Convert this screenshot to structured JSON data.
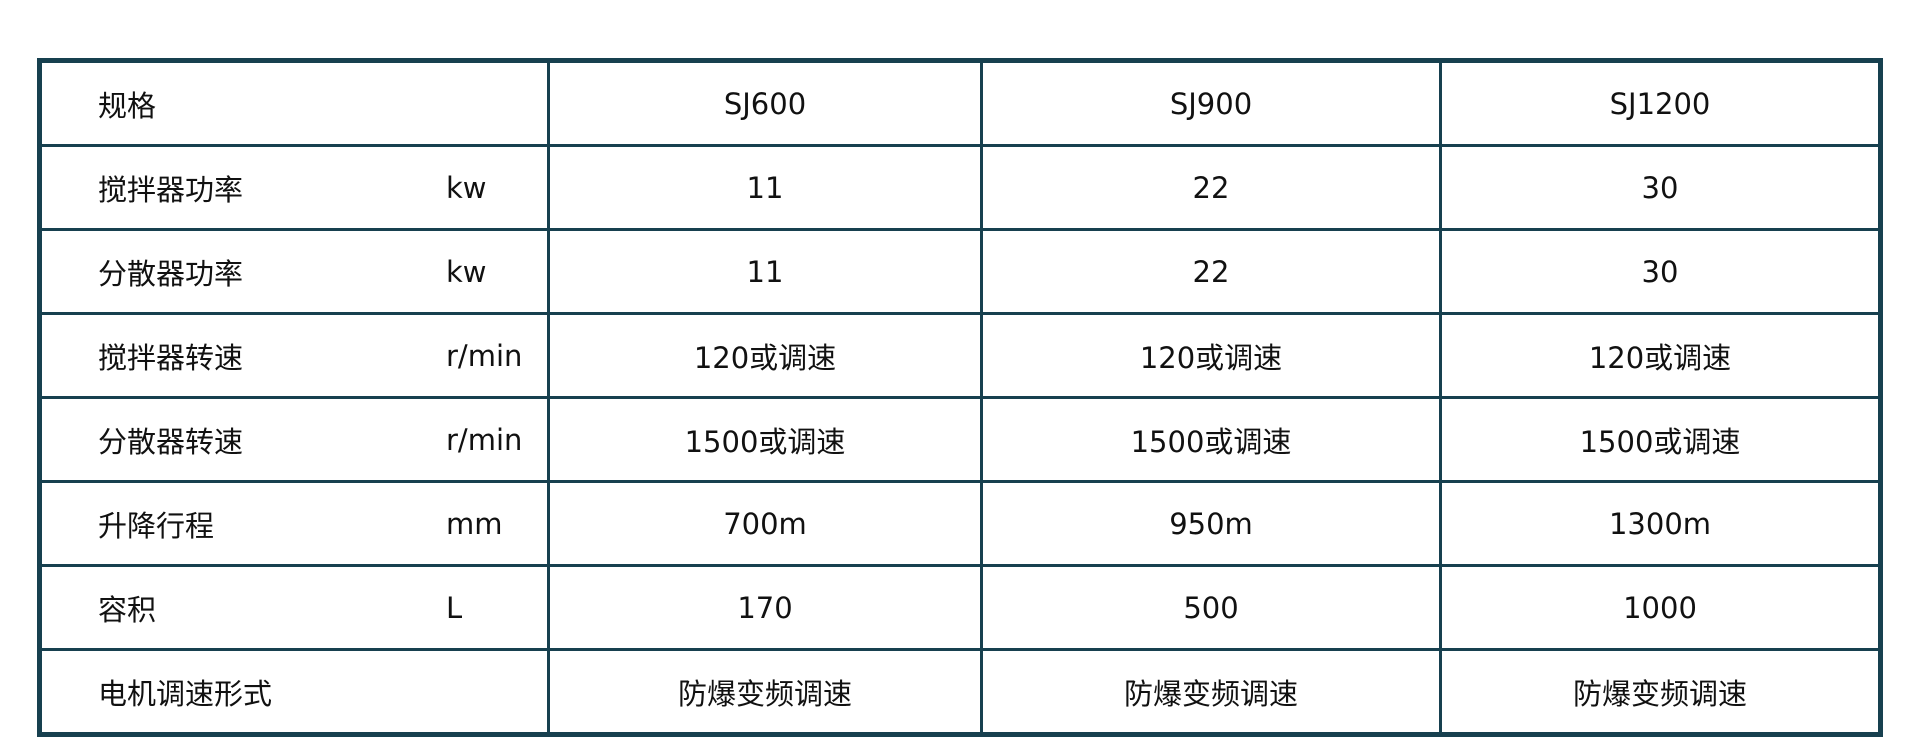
{
  "table": {
    "header": {
      "label": "规格",
      "models": [
        "SJ600",
        "SJ900",
        "SJ1200"
      ]
    },
    "rows": [
      {
        "label": "搅拌器功率",
        "unit": "kw",
        "values": [
          "11",
          "22",
          "30"
        ]
      },
      {
        "label": "分散器功率",
        "unit": "kw",
        "values": [
          "11",
          "22",
          "30"
        ]
      },
      {
        "label": "搅拌器转速",
        "unit": "r/min",
        "values": [
          "120或调速",
          "120或调速",
          "120或调速"
        ]
      },
      {
        "label": "分散器转速",
        "unit": "r/min",
        "values": [
          "1500或调速",
          "1500或调速",
          "1500或调速"
        ]
      },
      {
        "label": "升降行程",
        "unit": "mm",
        "values": [
          "700m",
          "950m",
          "1300m"
        ]
      },
      {
        "label": "容积",
        "unit": "L",
        "values": [
          "170",
          "500",
          "1000"
        ]
      },
      {
        "label": "电机调速形式",
        "unit": "",
        "values": [
          "防爆变频调速",
          "防爆变频调速",
          "防爆变频调速"
        ]
      }
    ]
  },
  "colors": {
    "border": "#17404f"
  }
}
